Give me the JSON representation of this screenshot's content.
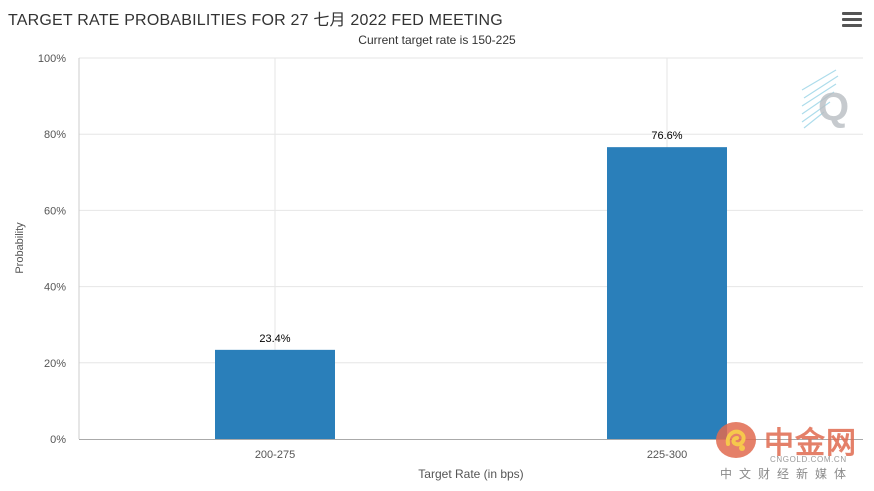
{
  "header": {
    "title": "TARGET RATE PROBABILITIES FOR 27 七月 2022 FED MEETING",
    "subtitle": "Current target rate is 150-225",
    "menu_icon": "hamburger-menu-icon"
  },
  "chart_data": {
    "type": "bar",
    "categories": [
      "200-275",
      "225-300"
    ],
    "values": [
      23.4,
      76.6
    ],
    "value_labels": [
      "23.4%",
      "76.6%"
    ],
    "title": "TARGET RATE PROBABILITIES FOR 27 七月 2022 FED MEETING",
    "subtitle": "Current target rate is 150-225",
    "xlabel": "Target Rate (in bps)",
    "ylabel": "Probability",
    "ylim": [
      0,
      100
    ],
    "y_ticks": [
      "0%",
      "20%",
      "40%",
      "60%",
      "80%",
      "100%"
    ],
    "grid": true,
    "bar_color": "#2a7fba"
  },
  "watermark": {
    "q_logo_text": "Q",
    "brand_name": "中金网",
    "brand_url": "CNGOLD.COM.CN",
    "brand_tagline": "中文财经新媒体",
    "brand_color": "#e06a4f"
  }
}
